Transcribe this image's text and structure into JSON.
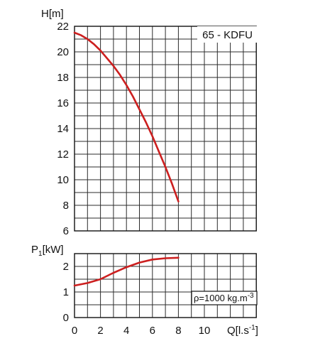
{
  "chart_data": [
    {
      "type": "line",
      "panel": "head",
      "title": "65 - KDFU",
      "ylabel": "H[m]",
      "xlim": [
        0,
        14
      ],
      "ylim": [
        6,
        22
      ],
      "yticks": [
        "6",
        "8",
        "10",
        "12",
        "14",
        "16",
        "18",
        "20",
        "22"
      ],
      "grid": true,
      "color": "#cc1f1f",
      "series": [
        {
          "x": [
            0,
            0.5,
            1,
            1.5,
            2,
            2.5,
            3,
            3.5,
            4,
            4.5,
            5,
            5.5,
            6,
            6.5,
            7,
            7.5,
            8
          ],
          "y": [
            21.5,
            21.3,
            21.0,
            20.6,
            20.1,
            19.5,
            18.9,
            18.2,
            17.4,
            16.5,
            15.5,
            14.5,
            13.4,
            12.2,
            11.0,
            9.7,
            8.3
          ]
        }
      ]
    },
    {
      "type": "line",
      "panel": "power",
      "ylabel_main": "P",
      "ylabel_sub": "1",
      "ylabel_unit": "[kW]",
      "xlabel_main": "Q[l.s",
      "xlabel_sup": "-1",
      "xlabel_end": "]",
      "xlim": [
        0,
        14
      ],
      "ylim": [
        0,
        2.5
      ],
      "yticks": [
        "0",
        "1",
        "2"
      ],
      "xticks": [
        "0",
        "2",
        "4",
        "6",
        "8",
        "10"
      ],
      "grid": true,
      "color": "#cc1f1f",
      "annotation": {
        "main": "ρ=1000 kg.m",
        "sup": "-3"
      },
      "series": [
        {
          "x": [
            0,
            1,
            2,
            3,
            4,
            5,
            6,
            7,
            8
          ],
          "y": [
            1.25,
            1.35,
            1.5,
            1.75,
            1.97,
            2.15,
            2.27,
            2.32,
            2.34
          ]
        }
      ]
    }
  ]
}
